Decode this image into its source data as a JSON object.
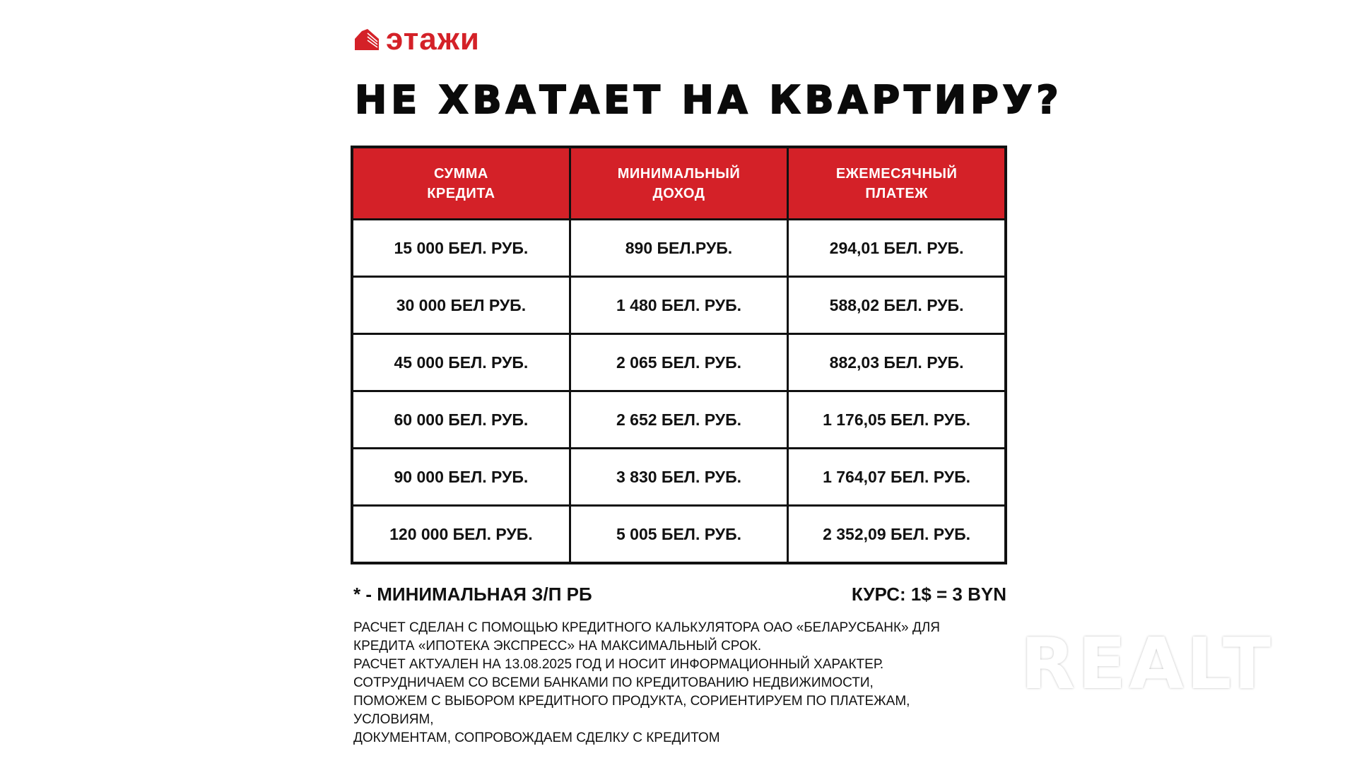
{
  "logo": {
    "text": "этажи",
    "icon": "building-icon",
    "color": "#d42128"
  },
  "title": "НЕ ХВАТАЕТ НА КВАРТИРУ?",
  "table": {
    "header_color": "#d42128",
    "headers": [
      [
        "СУММА",
        "КРЕДИТА"
      ],
      [
        "МИНИМАЛЬНЫЙ",
        "ДОХОД"
      ],
      [
        "ЕЖЕМЕСЯЧНЫЙ",
        "ПЛАТЕЖ"
      ]
    ],
    "rows": [
      [
        "15 000 БЕЛ. РУБ.",
        "890 БЕЛ.РУБ.",
        "294,01 БЕЛ. РУБ."
      ],
      [
        "30 000 БЕЛ РУБ.",
        "1 480 БЕЛ. РУБ.",
        "588,02 БЕЛ. РУБ."
      ],
      [
        "45 000 БЕЛ. РУБ.",
        "2 065 БЕЛ. РУБ.",
        "882,03 БЕЛ. РУБ."
      ],
      [
        "60 000 БЕЛ. РУБ.",
        "2 652 БЕЛ. РУБ.",
        "1 176,05 БЕЛ. РУБ."
      ],
      [
        "90 000 БЕЛ. РУБ.",
        "3 830 БЕЛ. РУБ.",
        "1 764,07 БЕЛ. РУБ."
      ],
      [
        "120 000 БЕЛ. РУБ.",
        "5 005 БЕЛ. РУБ.",
        "2 352,09 БЕЛ. РУБ."
      ]
    ]
  },
  "footnote_left": "* - МИНИМАЛЬНАЯ З/П РБ",
  "footnote_right": "КУРС: 1$ = 3 BYN",
  "notes": [
    "РАСЧЕТ СДЕЛАН С ПОМОЩЬЮ КРЕДИТНОГО КАЛЬКУЛЯТОРА ОАО «БЕЛАРУСБАНК» ДЛЯ",
    "КРЕДИТА «ИПОТЕКА ЭКСПРЕСС» НА МАКСИМАЛЬНЫЙ СРОК.",
    "РАСЧЕТ АКТУАЛЕН НА 13.08.2025 ГОД И НОСИТ ИНФОРМАЦИОННЫЙ ХАРАКТЕР.",
    "СОТРУДНИЧАЕМ СО ВСЕМИ БАНКАМИ ПО КРЕДИТОВАНИЮ НЕДВИЖИМОСТИ,",
    "ПОМОЖЕМ С ВЫБОРОМ КРЕДИТНОГО ПРОДУКТА, СОРИЕНТИРУЕМ ПО ПЛАТЕЖАМ,",
    "УСЛОВИЯМ,",
    "ДОКУМЕНТАМ, СОПРОВОЖДАЕМ СДЕЛКУ С КРЕДИТОМ"
  ],
  "watermark": "REALT"
}
